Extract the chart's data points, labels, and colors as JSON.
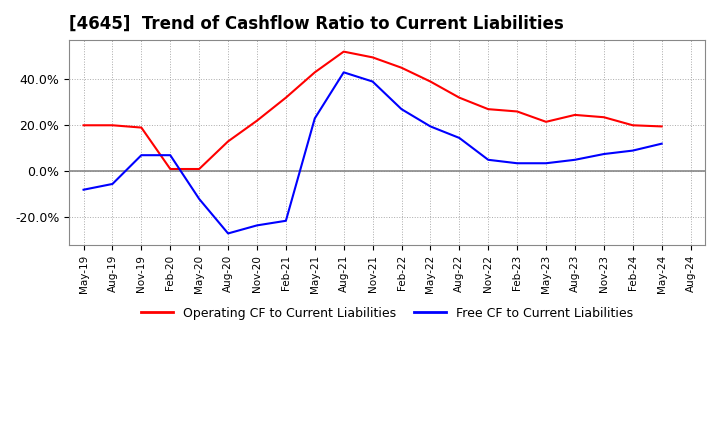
{
  "title": "[4645]  Trend of Cashflow Ratio to Current Liabilities",
  "title_fontsize": 12,
  "legend_labels": [
    "Operating CF to Current Liabilities",
    "Free CF to Current Liabilities"
  ],
  "legend_colors": [
    "red",
    "blue"
  ],
  "xtick_labels": [
    "May-19",
    "Aug-19",
    "Nov-19",
    "Feb-20",
    "May-20",
    "Aug-20",
    "Nov-20",
    "Feb-21",
    "May-21",
    "Aug-21",
    "Nov-21",
    "Feb-22",
    "May-22",
    "Aug-22",
    "Nov-22",
    "Feb-23",
    "May-23",
    "Aug-23",
    "Nov-23",
    "Feb-24",
    "May-24",
    "Aug-24"
  ],
  "operating_cf": [
    0.2,
    0.2,
    0.19,
    0.01,
    0.01,
    0.13,
    0.22,
    0.32,
    0.43,
    0.52,
    0.495,
    0.45,
    0.39,
    0.32,
    0.27,
    0.26,
    0.215,
    0.245,
    0.235,
    0.2,
    0.195,
    null
  ],
  "free_cf": [
    -0.08,
    -0.055,
    0.07,
    0.07,
    -0.12,
    -0.27,
    -0.235,
    -0.215,
    0.23,
    0.43,
    0.39,
    0.27,
    0.195,
    0.145,
    0.05,
    0.035,
    0.035,
    0.05,
    0.075,
    0.09,
    0.12,
    null
  ],
  "ylim": [
    -0.32,
    0.57
  ],
  "yticks": [
    -0.2,
    0.0,
    0.2,
    0.4
  ],
  "ytick_labels": [
    "-20.0%",
    "0.0%",
    "20.0%",
    "40.0%"
  ],
  "grid_color": "#aaaaaa",
  "zero_line_color": "#888888",
  "background_color": "#ffffff",
  "plot_bg_color": "#ffffff"
}
